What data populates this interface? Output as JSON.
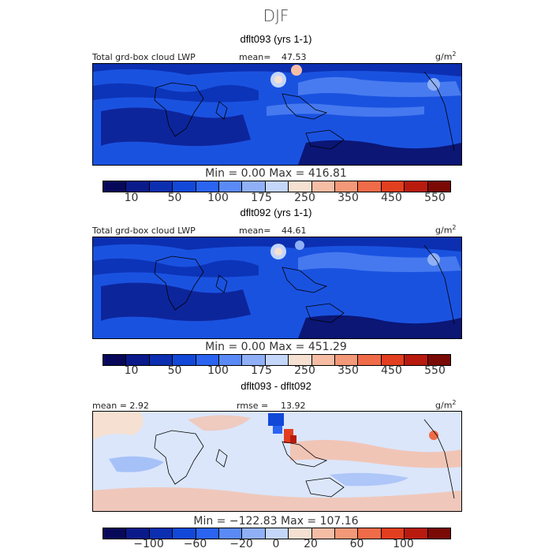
{
  "title": "DJF",
  "panels": [
    {
      "title": "dflt093 (yrs 1-1)",
      "left_label": "Total grd-box cloud LWP",
      "stat_label": "mean=",
      "stat_value": "47.53",
      "units_base": "g/m",
      "units_exp": "2",
      "minmax": "Min =    0.00 Max = 416.81",
      "ticks": [
        "10",
        "50",
        "100",
        "175",
        "250",
        "350",
        "450",
        "550"
      ]
    },
    {
      "title": "dflt092 (yrs 1-1)",
      "left_label": "Total grd-box cloud LWP",
      "stat_label": "mean=",
      "stat_value": "44.61",
      "units_base": "g/m",
      "units_exp": "2",
      "minmax": "Min =    0.00 Max = 451.29",
      "ticks": [
        "10",
        "50",
        "100",
        "175",
        "250",
        "350",
        "450",
        "550"
      ]
    },
    {
      "title": "dflt093 - dflt092",
      "left_label": "mean =   2.92",
      "stat_label": "rmse =",
      "stat_value": "13.92",
      "units_base": "g/m",
      "units_exp": "2",
      "minmax": "Min = −122.83 Max = 107.16",
      "ticks": [
        "−100",
        "−60",
        "−20",
        "0",
        "20",
        "60",
        "100"
      ]
    }
  ],
  "colorbar": {
    "colors": [
      "#08085a",
      "#0a1a8a",
      "#0b2fb0",
      "#1248d8",
      "#2a64f0",
      "#5a8af5",
      "#8fb0f7",
      "#c4d6fa",
      "#f6e0d2",
      "#f6bda5",
      "#f39878",
      "#f06b48",
      "#e23e20",
      "#b81a0e",
      "#7a0a06"
    ]
  }
}
